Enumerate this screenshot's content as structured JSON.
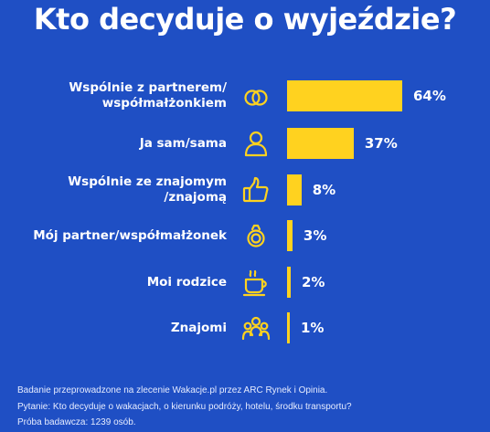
{
  "chart_data": {
    "type": "bar",
    "orientation": "horizontal",
    "title": "Kto decyduje o wyjeździe?",
    "categories": [
      "Wspólnie z partnerem/\nwspółmałżonkiem",
      "Ja sam/sama",
      "Wspólnie ze znajomym\n/znajomą",
      "Mój partner/współmałżonek",
      "Moi rodzice",
      "Znajomi"
    ],
    "values": [
      64,
      37,
      8,
      3,
      2,
      1
    ],
    "value_labels": [
      "64%",
      "37%",
      "8%",
      "3%",
      "2%",
      "1%"
    ],
    "icons": [
      "rings-icon",
      "person-icon",
      "thumbs-up-icon",
      "ring-icon",
      "coffee-cup-icon",
      "group-icon"
    ],
    "xlim": [
      0,
      64
    ],
    "grid": false,
    "legend": "none"
  },
  "colors": {
    "background": "#1f4fc4",
    "bar": "#ffd21f",
    "icon": "#ffd21f",
    "text": "#ffffff"
  },
  "footer": {
    "line1": "Badanie przeprowadzone na zlecenie Wakacje.pl przez ARC Rynek i Opinia.",
    "line2": "Pytanie: Kto decyduje o wakacjach, o kierunku podróży, hotelu, środku transportu?",
    "line3": "Próba badawcza: 1239 osób."
  }
}
